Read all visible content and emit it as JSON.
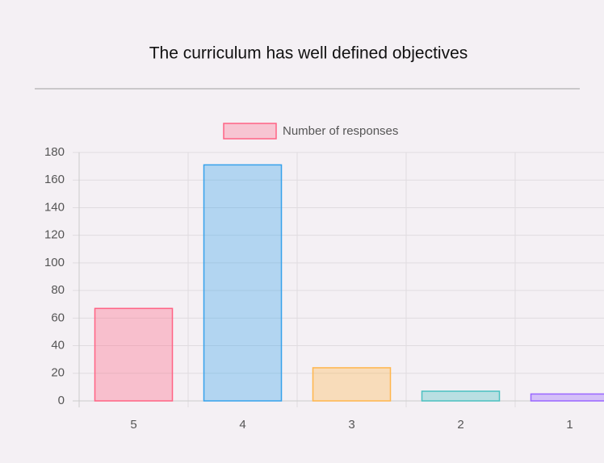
{
  "chart_data": {
    "type": "bar",
    "title": "The curriculum has well defined objectives",
    "categories": [
      "5",
      "4",
      "3",
      "2",
      "1"
    ],
    "series": [
      {
        "name": "Number of responses",
        "color": "#ff6384",
        "colors": [
          "#ff6384",
          "#36a2eb",
          "#ffb64c",
          "#4bc0c0",
          "#9966ff"
        ],
        "values": [
          67,
          171,
          24,
          7,
          5
        ]
      }
    ],
    "ylim": [
      0,
      180
    ],
    "yticks": [
      0,
      20,
      40,
      60,
      80,
      100,
      120,
      140,
      160,
      180
    ],
    "grid": true,
    "legend": "top"
  }
}
